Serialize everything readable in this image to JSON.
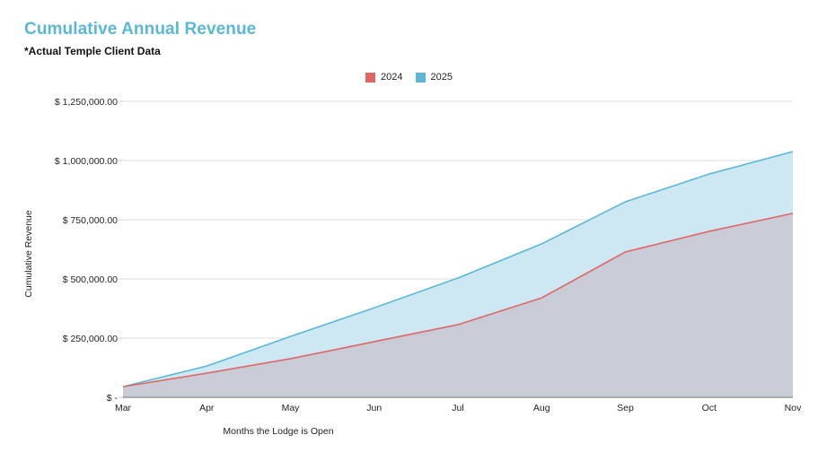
{
  "header": {
    "title": "Cumulative Annual Revenue",
    "subtitle": "*Actual Temple Client Data"
  },
  "colors": {
    "title": "#5ab8d6",
    "series_2024_line": "#e06666",
    "series_2025_line": "#5ab8d6",
    "series_2024_fill": "#c9cbd6",
    "series_2025_fill": "#cde8f2",
    "grid": "#dddddd",
    "axis": "#999999"
  },
  "chart_data": {
    "type": "area",
    "title": "Cumulative Annual Revenue",
    "subtitle": "*Actual Temple Client Data",
    "xlabel": "Months the Lodge is Open",
    "ylabel": "Cumulative Revenue",
    "categories": [
      "Mar",
      "Apr",
      "May",
      "Jun",
      "Jul",
      "Aug",
      "Sep",
      "Oct",
      "Nov"
    ],
    "series": [
      {
        "name": "2024",
        "values": [
          45000,
          102000,
          163000,
          235000,
          307000,
          420000,
          614000,
          701000,
          777000
        ]
      },
      {
        "name": "2025",
        "values": [
          45000,
          132000,
          257000,
          378000,
          504000,
          648000,
          826000,
          943000,
          1038000
        ]
      }
    ],
    "ylim": [
      0,
      1250000
    ],
    "yticks": [
      0,
      250000,
      500000,
      750000,
      1000000,
      1250000
    ],
    "ytick_labels": [
      "$ -",
      "$ 250,000.00",
      "$ 500,000.00",
      "$ 750,000.00",
      "$ 1,000,000.00",
      "$ 1,250,000.00"
    ],
    "grid": true,
    "legend": "top-center"
  }
}
